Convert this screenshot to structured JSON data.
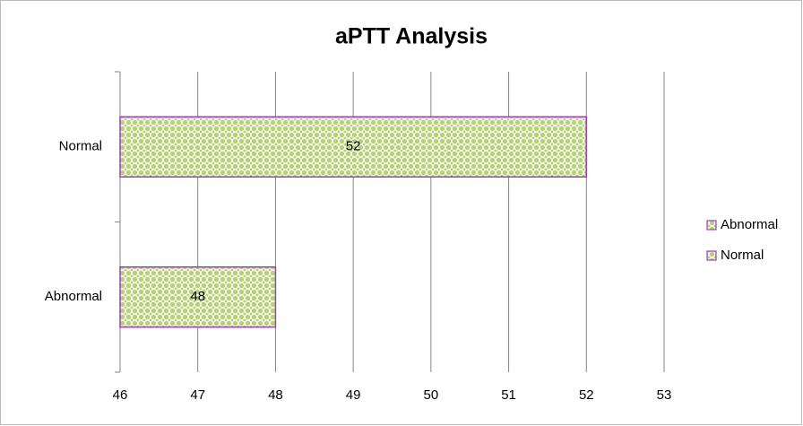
{
  "chart_data": {
    "type": "hbar",
    "title": "aPTT Analysis",
    "categories": [
      "Abnormal",
      "Normal"
    ],
    "series": [
      {
        "name": "Abnormal",
        "color": "#9bbb59",
        "values": [
          48,
          null
        ]
      },
      {
        "name": "Normal",
        "color": "#9bbb59",
        "values": [
          null,
          52
        ]
      }
    ],
    "border_color": "#a03cb4",
    "xlim": [
      46,
      53
    ],
    "xticks": [
      46,
      47,
      48,
      49,
      50,
      51,
      52,
      53
    ],
    "grid": true,
    "legend": "right"
  }
}
